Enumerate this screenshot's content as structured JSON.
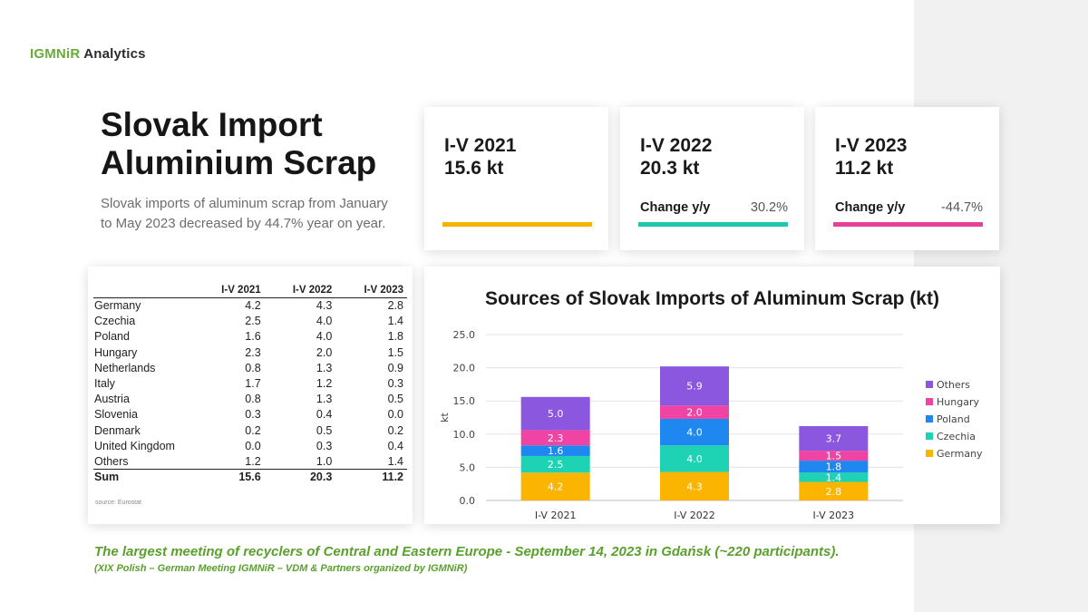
{
  "brand": {
    "part1": "IGMNiR",
    "part2": "Analytics"
  },
  "title": "Slovak Import Aluminium Scrap",
  "subtitle": "Slovak imports of aluminum scrap from January to May 2023 decreased by 44.7% year on year.",
  "kpis": [
    {
      "period": "I-V 2021",
      "value": "15.6 kt",
      "change_label": "",
      "change_value": "",
      "color": "#f5b400"
    },
    {
      "period": "I-V 2022",
      "value": "20.3 kt",
      "change_label": "Change y/y",
      "change_value": "30.2%",
      "color": "#1ec8b0"
    },
    {
      "period": "I-V 2023",
      "value": "11.2 kt",
      "change_label": "Change y/y",
      "change_value": "-44.7%",
      "color": "#e8409a"
    }
  ],
  "table": {
    "headers": [
      "",
      "I-V 2021",
      "I-V 2022",
      "I-V 2023"
    ],
    "rows": [
      [
        "Germany",
        "4.2",
        "4.3",
        "2.8"
      ],
      [
        "Czechia",
        "2.5",
        "4.0",
        "1.4"
      ],
      [
        "Poland",
        "1.6",
        "4.0",
        "1.8"
      ],
      [
        "Hungary",
        "2.3",
        "2.0",
        "1.5"
      ],
      [
        "Netherlands",
        "0.8",
        "1.3",
        "0.9"
      ],
      [
        "Italy",
        "1.7",
        "1.2",
        "0.3"
      ],
      [
        "Austria",
        "0.8",
        "1.3",
        "0.5"
      ],
      [
        "Slovenia",
        "0.3",
        "0.4",
        "0.0"
      ],
      [
        "Denmark",
        "0.2",
        "0.5",
        "0.2"
      ],
      [
        "United Kingdom",
        "0.0",
        "0.3",
        "0.4"
      ],
      [
        "Others",
        "1.2",
        "1.0",
        "1.4"
      ]
    ],
    "sum": [
      "Sum",
      "15.6",
      "20.3",
      "11.2"
    ],
    "source": "source: Eurostat"
  },
  "chart_data": {
    "type": "bar",
    "stacked": true,
    "title": "Sources of Slovak Imports of Aluminum Scrap (kt)",
    "xlabel": "",
    "ylabel": "kt",
    "ylim": [
      0,
      25
    ],
    "yticks": [
      "0.0",
      "5.0",
      "10.0",
      "15.0",
      "20.0",
      "25.0"
    ],
    "grid": true,
    "legend_position": "right",
    "categories": [
      "I-V 2021",
      "I-V 2022",
      "I-V 2023"
    ],
    "series": [
      {
        "name": "Germany",
        "color": "#fbb500",
        "values": [
          4.2,
          4.3,
          2.8
        ]
      },
      {
        "name": "Czechia",
        "color": "#1ed3b4",
        "values": [
          2.5,
          4.0,
          1.4
        ]
      },
      {
        "name": "Poland",
        "color": "#1f87f0",
        "values": [
          1.6,
          4.0,
          1.8
        ]
      },
      {
        "name": "Hungary",
        "color": "#ef44a3",
        "values": [
          2.3,
          2.0,
          1.5
        ]
      },
      {
        "name": "Others",
        "color": "#8a57de",
        "values": [
          5.0,
          5.9,
          3.7
        ]
      }
    ]
  },
  "footer": {
    "line1": "The largest meeting of recyclers of Central and Eastern Europe - September 14, 2023 in Gdańsk (~220 participants).",
    "line2": "(XIX Polish – German Meeting IGMNiR – VDM & Partners organized by IGMNiR)"
  }
}
